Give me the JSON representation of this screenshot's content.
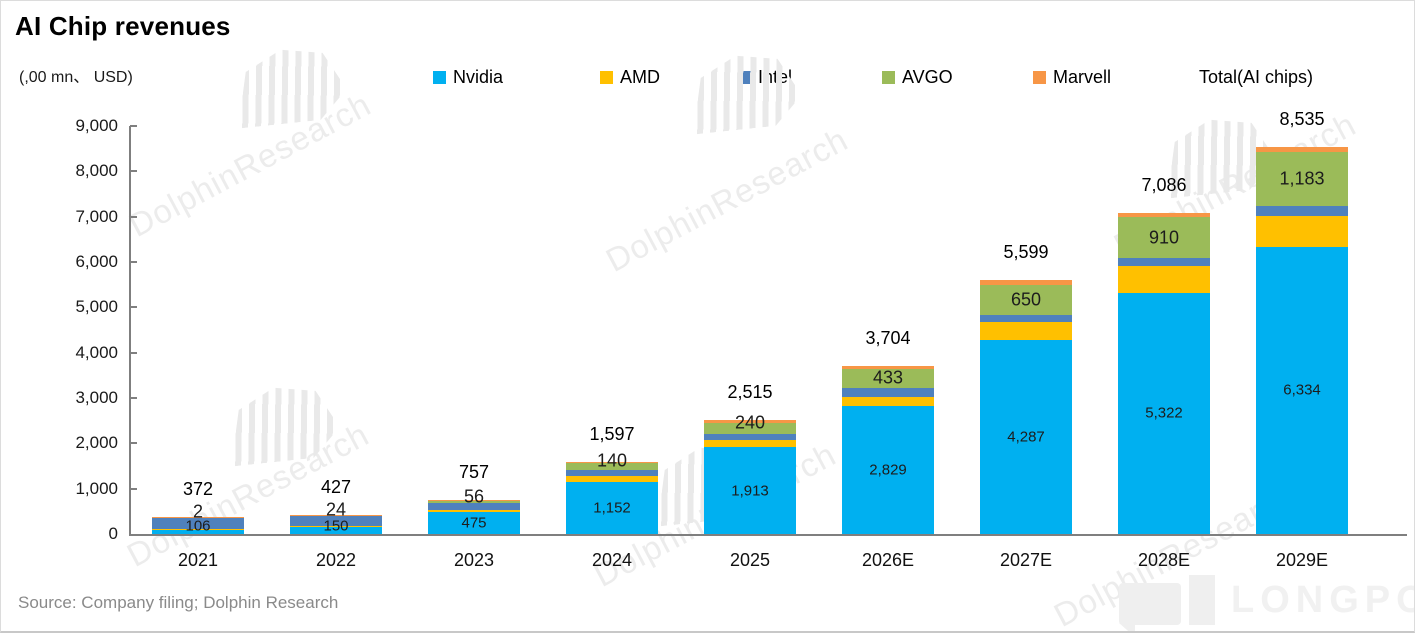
{
  "header": {
    "title": "AI Chip revenues",
    "units": "(,00 mn、 USD)"
  },
  "legend": {
    "items": [
      {
        "label": "Nvidia",
        "color": "#00B0F0"
      },
      {
        "label": "AMD",
        "color": "#FFC000"
      },
      {
        "label": "Intel",
        "color": "#4F81BD"
      },
      {
        "label": "AVGO",
        "color": "#9BBB59"
      },
      {
        "label": "Marvell",
        "color": "#F79646"
      },
      {
        "label": "Total(AI chips)",
        "color": null
      }
    ]
  },
  "chart_data": {
    "type": "bar",
    "stacked": true,
    "title": "AI Chip revenues",
    "units_label": "(,00 mn、 USD)",
    "categories": [
      "2021",
      "2022",
      "2023",
      "2024",
      "2025",
      "2026E",
      "2027E",
      "2028E",
      "2029E"
    ],
    "series": [
      {
        "name": "Nvidia",
        "color": "#00B0F0",
        "values": [
          106,
          150,
          475,
          1152,
          1913,
          2829,
          4287,
          5322,
          6334
        ]
      },
      {
        "name": "AMD",
        "color": "#FFC000",
        "values": [
          12,
          35,
          65,
          125,
          160,
          195,
          380,
          580,
          685
        ]
      },
      {
        "name": "Intel",
        "color": "#4F81BD",
        "values": [
          250,
          212,
          140,
          145,
          135,
          190,
          170,
          180,
          215
        ]
      },
      {
        "name": "AVGO",
        "color": "#9BBB59",
        "values": [
          2,
          24,
          56,
          140,
          240,
          433,
          650,
          910,
          1183
        ]
      },
      {
        "name": "Marvell",
        "color": "#F79646",
        "values": [
          2,
          6,
          21,
          35,
          67,
          57,
          112,
          94,
          118
        ]
      }
    ],
    "totals": [
      372,
      427,
      757,
      1597,
      2515,
      3704,
      5599,
      7086,
      8535
    ],
    "labeled_series": [
      "Nvidia",
      "AVGO"
    ],
    "estimated_series": [
      "AMD",
      "Intel",
      "Marvell"
    ],
    "y_axis": {
      "min": 0,
      "max": 9000,
      "step": 1000
    },
    "legend_position": "top",
    "gridlines": false
  },
  "watermark": {
    "brand": "DolphinResearch"
  },
  "footer": {
    "source": "Source: Company filing; Dolphin Research",
    "longport": "LONGPORT"
  }
}
